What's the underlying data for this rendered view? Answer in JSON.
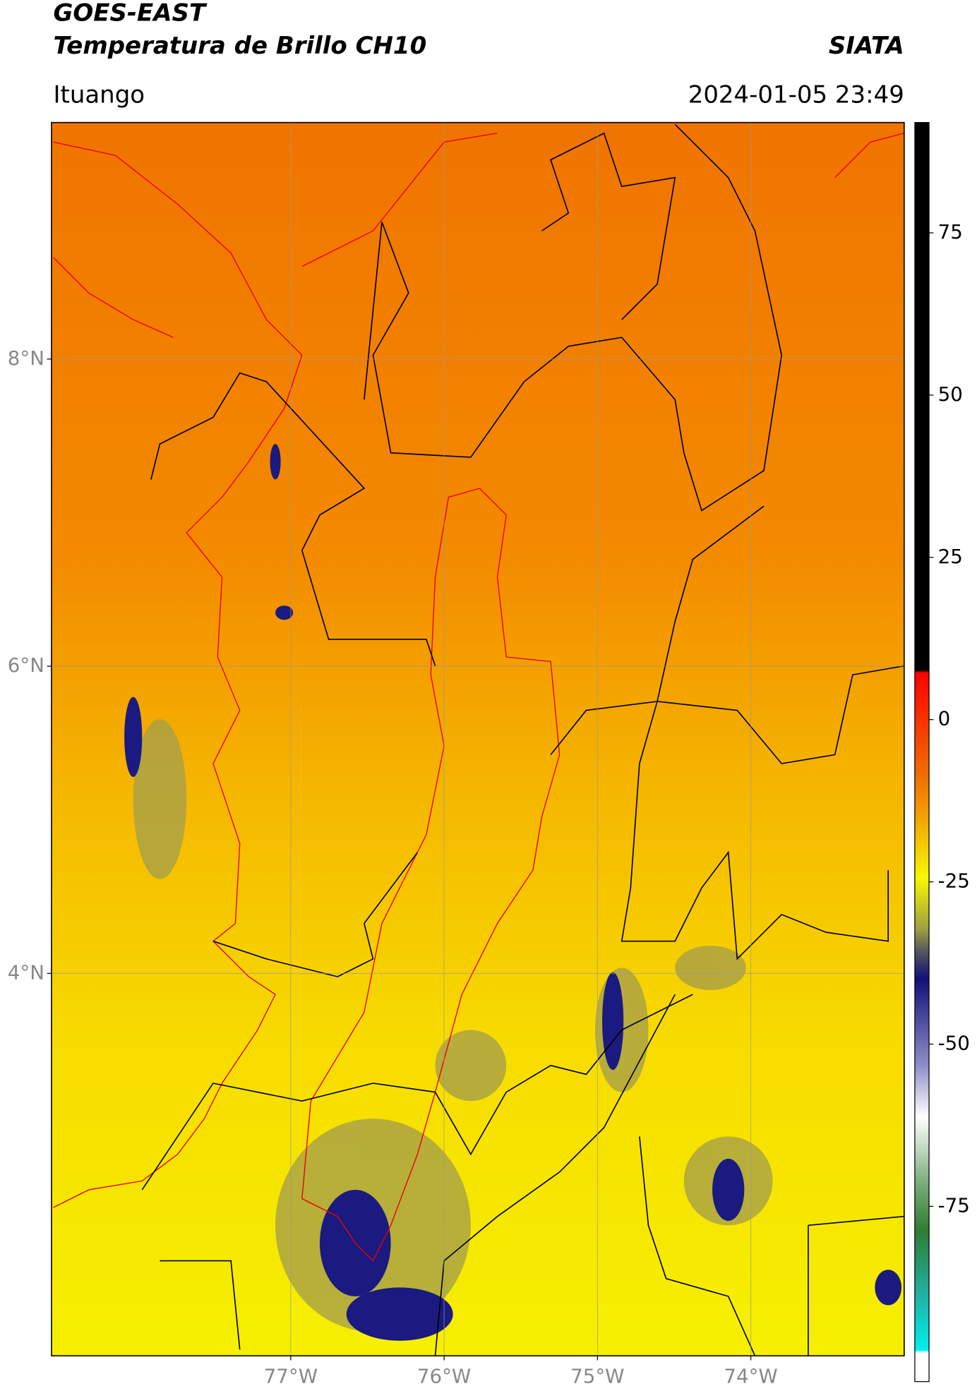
{
  "header": {
    "title": "GOES-EAST",
    "subtitle": "Temperatura de Brillo CH10",
    "source": "SIATA",
    "location": "Ituango",
    "datetime": "2024-01-05 23:49"
  },
  "map": {
    "lon_range": [
      -78.56,
      -73.0
    ],
    "lat_range": [
      1.51,
      9.54
    ],
    "lat_ticks": [
      {
        "value": 8,
        "label": "8°N"
      },
      {
        "value": 6,
        "label": "6°N"
      },
      {
        "value": 4,
        "label": "4°N"
      }
    ],
    "lon_ticks": [
      {
        "value": -77,
        "label": "77°W"
      },
      {
        "value": -76,
        "label": "76°W"
      },
      {
        "value": -75,
        "label": "75°W"
      },
      {
        "value": -74,
        "label": "74°W"
      }
    ],
    "grid": true
  },
  "colorbar": {
    "lim": [
      -102,
      92
    ],
    "ticks": [
      75,
      50,
      25,
      0,
      -25,
      -50,
      -75
    ]
  }
}
